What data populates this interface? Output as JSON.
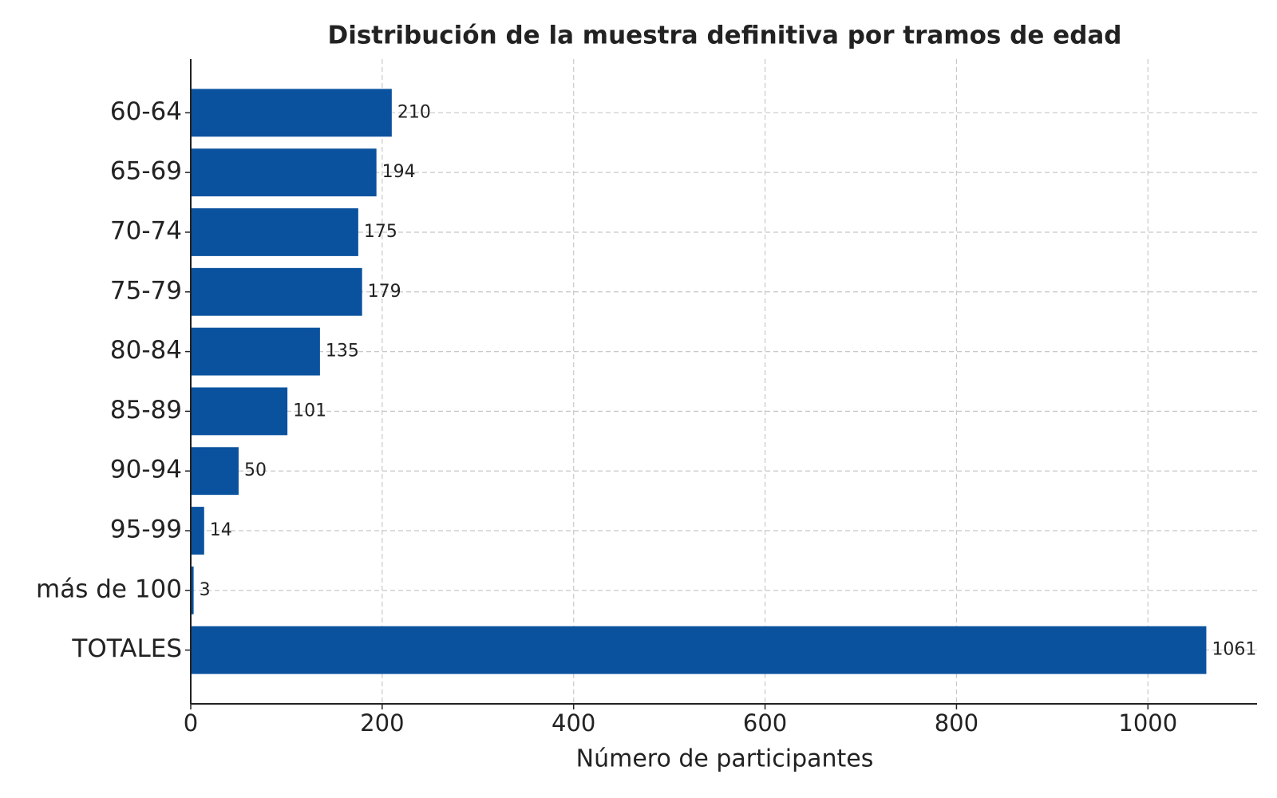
{
  "chart_data": {
    "type": "barh",
    "title": "Distribución de la muestra definitiva por tramos de edad",
    "xlabel": "Número de participantes",
    "categories": [
      "60-64",
      "65-69",
      "70-74",
      "75-79",
      "80-84",
      "85-89",
      "90-94",
      "95-99",
      "más de 100",
      "TOTALES"
    ],
    "values": [
      210,
      194,
      175,
      179,
      135,
      101,
      50,
      14,
      3,
      1061
    ],
    "color": "#0a529e",
    "xlim": [
      0,
      1114
    ],
    "xticks": [
      0,
      200,
      400,
      600,
      800,
      1000
    ],
    "grid": true
  }
}
